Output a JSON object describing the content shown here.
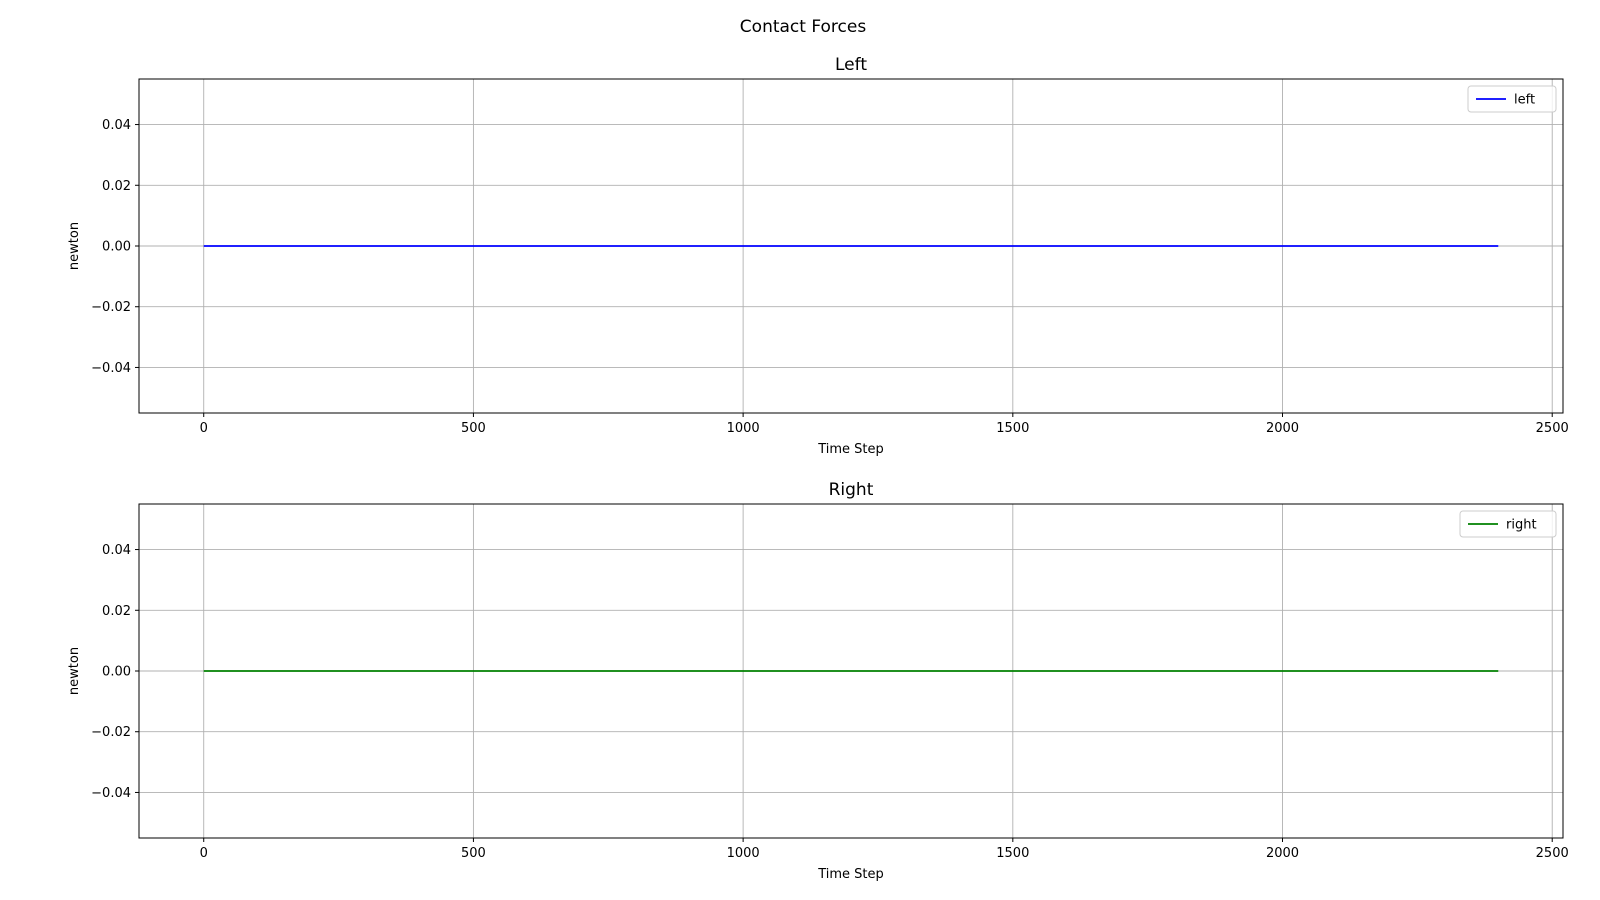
{
  "figure": {
    "title": "Contact Forces"
  },
  "chart_data": [
    {
      "type": "line",
      "title": "Left",
      "xlabel": "Time Step",
      "ylabel": "newton",
      "xlim": [
        -120,
        2520
      ],
      "ylim": [
        -0.055,
        0.055
      ],
      "xticks": [
        0,
        500,
        1000,
        1500,
        2000,
        2500
      ],
      "xtick_labels": [
        "0",
        "500",
        "1000",
        "1500",
        "2000",
        "2500"
      ],
      "yticks": [
        0.04,
        0.02,
        0.0,
        -0.02,
        -0.04
      ],
      "ytick_labels": [
        "0.04",
        "0.02",
        "0.00",
        "−0.02",
        "−0.04"
      ],
      "grid": true,
      "legend_position": "top-right",
      "series": [
        {
          "name": "left",
          "color": "#0000ff",
          "x": [
            0,
            2400
          ],
          "y": [
            0.0,
            0.0
          ]
        }
      ]
    },
    {
      "type": "line",
      "title": "Right",
      "xlabel": "Time Step",
      "ylabel": "newton",
      "xlim": [
        -120,
        2520
      ],
      "ylim": [
        -0.055,
        0.055
      ],
      "xticks": [
        0,
        500,
        1000,
        1500,
        2000,
        2500
      ],
      "xtick_labels": [
        "0",
        "500",
        "1000",
        "1500",
        "2000",
        "2500"
      ],
      "yticks": [
        0.04,
        0.02,
        0.0,
        -0.02,
        -0.04
      ],
      "ytick_labels": [
        "0.04",
        "0.02",
        "0.00",
        "−0.02",
        "−0.04"
      ],
      "grid": true,
      "legend_position": "top-right",
      "series": [
        {
          "name": "right",
          "color": "#008000",
          "x": [
            0,
            2400
          ],
          "y": [
            0.0,
            0.0
          ]
        }
      ]
    }
  ]
}
